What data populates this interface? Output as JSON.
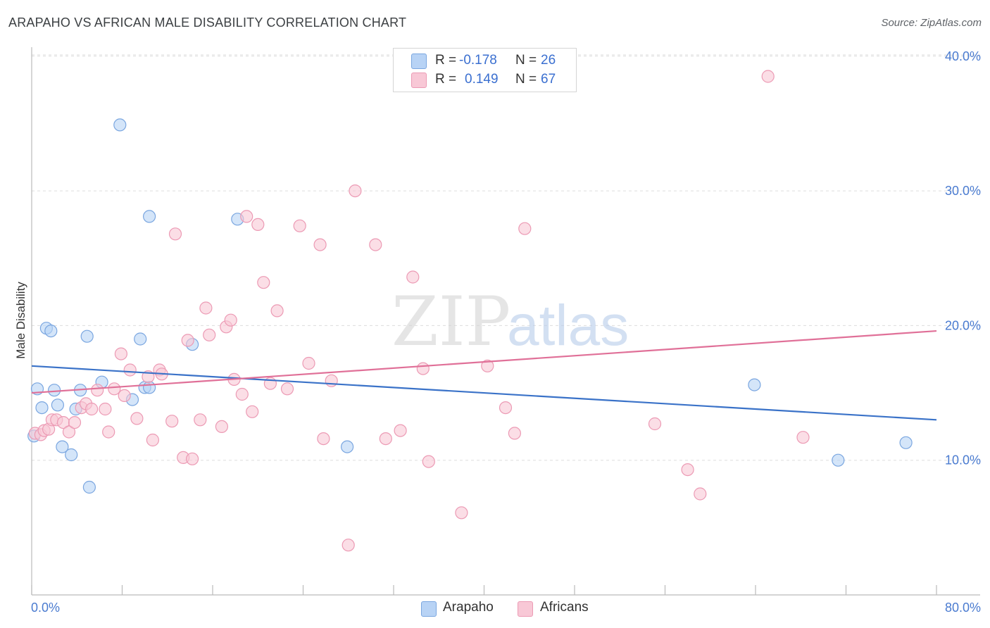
{
  "header": {
    "title": "ARAPAHO VS AFRICAN MALE DISABILITY CORRELATION CHART",
    "source": "Source: ZipAtlas.com"
  },
  "watermark": {
    "zip": "ZIP",
    "atlas": "atlas"
  },
  "colors": {
    "arapaho_fill": "#b8d3f5",
    "arapaho_stroke": "#7aa6e0",
    "arapaho_line": "#3a72c8",
    "africans_fill": "#f8c8d6",
    "africans_stroke": "#ec9ab4",
    "africans_line": "#e07098",
    "tick_text": "#4a7bd0",
    "grid": "#dddddd"
  },
  "legend": {
    "arapaho": {
      "r_label": "R =",
      "r_value": "-0.178",
      "n_label": "N =",
      "n_value": "26"
    },
    "africans": {
      "r_label": "R =",
      "r_value": "0.149",
      "n_label": "N =",
      "n_value": "67"
    }
  },
  "bottom_legend": {
    "arapaho": "Arapaho",
    "africans": "Africans"
  },
  "chart_data": {
    "type": "scatter",
    "title": "ARAPAHO VS AFRICAN MALE DISABILITY CORRELATION CHART",
    "xlabel": "",
    "ylabel": "Male Disability",
    "xlim": [
      0,
      80
    ],
    "ylim": [
      0,
      42
    ],
    "x_tick_labels": [
      "0.0%",
      "80.0%"
    ],
    "y_ticks": [
      10,
      20,
      30,
      40
    ],
    "y_tick_labels": [
      "10.0%",
      "20.0%",
      "30.0%",
      "40.0%"
    ],
    "grid": true,
    "series": [
      {
        "name": "Arapaho",
        "r": -0.178,
        "n": 26,
        "trend": {
          "x": [
            0,
            80
          ],
          "y": [
            17.0,
            13.0
          ]
        },
        "points": [
          [
            0.2,
            11.8
          ],
          [
            0.5,
            15.3
          ],
          [
            0.9,
            13.9
          ],
          [
            1.3,
            19.8
          ],
          [
            1.7,
            19.6
          ],
          [
            2.0,
            15.2
          ],
          [
            2.3,
            14.1
          ],
          [
            2.7,
            11.0
          ],
          [
            3.5,
            10.4
          ],
          [
            3.9,
            13.8
          ],
          [
            4.3,
            15.2
          ],
          [
            4.9,
            19.2
          ],
          [
            5.1,
            8.0
          ],
          [
            6.2,
            15.8
          ],
          [
            7.8,
            34.9
          ],
          [
            8.9,
            14.5
          ],
          [
            9.6,
            19.0
          ],
          [
            10.0,
            15.4
          ],
          [
            10.4,
            15.4
          ],
          [
            10.4,
            28.1
          ],
          [
            14.2,
            18.6
          ],
          [
            18.2,
            27.9
          ],
          [
            27.9,
            11.0
          ],
          [
            63.9,
            15.6
          ],
          [
            71.3,
            10.0
          ],
          [
            77.3,
            11.3
          ]
        ]
      },
      {
        "name": "Africans",
        "r": 0.149,
        "n": 67,
        "trend": {
          "x": [
            0,
            80
          ],
          "y": [
            15.0,
            19.6
          ]
        },
        "points": [
          [
            0.3,
            12.0
          ],
          [
            0.8,
            11.9
          ],
          [
            1.1,
            12.2
          ],
          [
            1.5,
            12.3
          ],
          [
            1.8,
            13.0
          ],
          [
            2.2,
            13.0
          ],
          [
            2.8,
            12.8
          ],
          [
            3.3,
            12.1
          ],
          [
            3.8,
            12.8
          ],
          [
            4.4,
            13.9
          ],
          [
            4.8,
            14.2
          ],
          [
            5.3,
            13.8
          ],
          [
            5.8,
            15.2
          ],
          [
            6.5,
            13.8
          ],
          [
            6.8,
            12.1
          ],
          [
            7.3,
            15.3
          ],
          [
            7.9,
            17.9
          ],
          [
            8.2,
            14.8
          ],
          [
            8.7,
            16.7
          ],
          [
            9.3,
            13.1
          ],
          [
            10.3,
            16.2
          ],
          [
            10.7,
            11.5
          ],
          [
            11.3,
            16.7
          ],
          [
            11.5,
            16.4
          ],
          [
            12.4,
            12.9
          ],
          [
            12.7,
            26.8
          ],
          [
            13.4,
            10.2
          ],
          [
            13.8,
            18.9
          ],
          [
            14.2,
            10.1
          ],
          [
            14.9,
            13.0
          ],
          [
            15.4,
            21.3
          ],
          [
            15.7,
            19.3
          ],
          [
            16.8,
            12.5
          ],
          [
            17.2,
            19.9
          ],
          [
            17.6,
            20.4
          ],
          [
            17.9,
            16.0
          ],
          [
            18.6,
            14.9
          ],
          [
            19.0,
            28.1
          ],
          [
            19.5,
            13.6
          ],
          [
            20.0,
            27.5
          ],
          [
            20.5,
            23.2
          ],
          [
            21.1,
            15.7
          ],
          [
            21.7,
            21.1
          ],
          [
            22.6,
            15.3
          ],
          [
            23.7,
            27.4
          ],
          [
            24.5,
            17.2
          ],
          [
            25.5,
            26.0
          ],
          [
            25.8,
            11.6
          ],
          [
            26.5,
            15.9
          ],
          [
            28.0,
            3.7
          ],
          [
            28.6,
            30.0
          ],
          [
            30.4,
            26.0
          ],
          [
            31.3,
            11.6
          ],
          [
            32.6,
            12.2
          ],
          [
            33.7,
            23.6
          ],
          [
            34.6,
            16.8
          ],
          [
            35.1,
            9.9
          ],
          [
            38.0,
            6.1
          ],
          [
            40.3,
            17.0
          ],
          [
            41.9,
            13.9
          ],
          [
            42.7,
            12.0
          ],
          [
            43.6,
            27.2
          ],
          [
            55.1,
            12.7
          ],
          [
            58.0,
            9.3
          ],
          [
            59.1,
            7.5
          ],
          [
            65.1,
            38.5
          ],
          [
            68.2,
            11.7
          ]
        ]
      }
    ]
  }
}
